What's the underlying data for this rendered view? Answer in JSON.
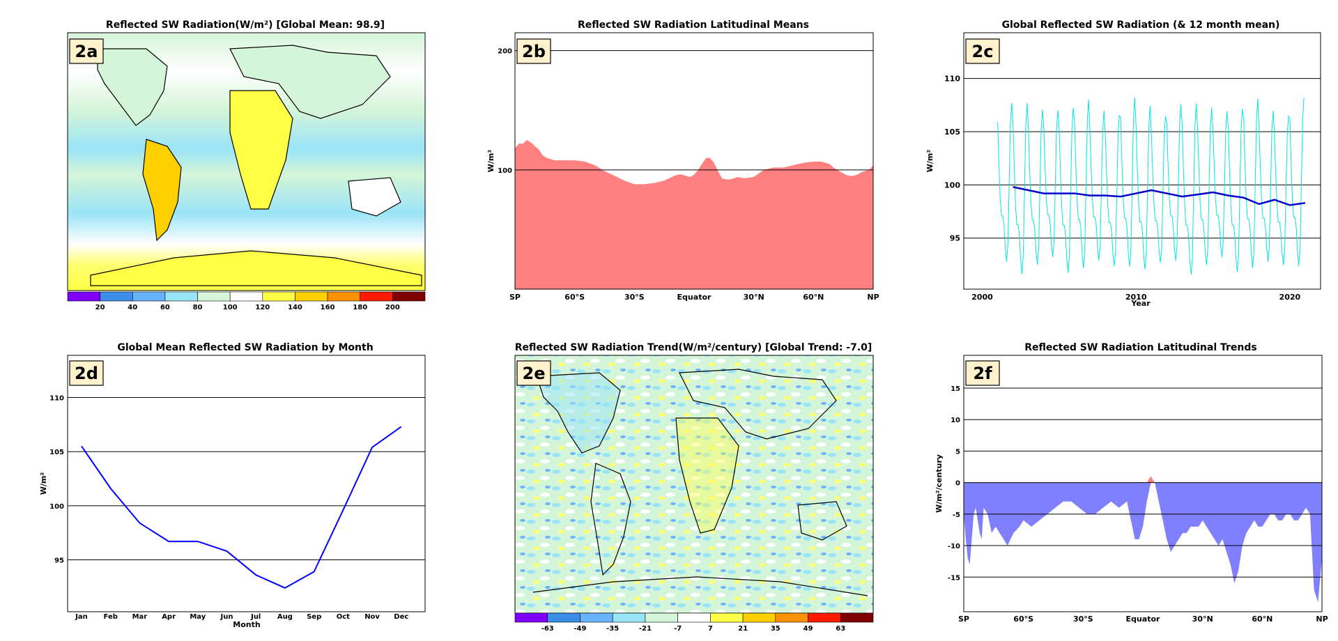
{
  "chart_data": [
    {
      "id": "2a",
      "type": "heatmap",
      "badge": "2a",
      "title": "Reflected SW Radiation(W/m²) [Global Mean: 98.9]",
      "colorbar": {
        "ticks": [
          "20",
          "40",
          "60",
          "80",
          "100",
          "120",
          "140",
          "160",
          "180",
          "200"
        ],
        "colors": [
          "#7f00ff",
          "#3a8ee8",
          "#66b4ff",
          "#9ae4f7",
          "#d5f5d8",
          "#ffffff",
          "#ffff46",
          "#ffd000",
          "#ff9100",
          "#ff1a00",
          "#800000"
        ]
      }
    },
    {
      "id": "2b",
      "type": "area",
      "badge": "2b",
      "title": "Reflected SW Radiation Latitudinal Means",
      "ylabel": "W/m²",
      "ylim": [
        0,
        215
      ],
      "yticks": [
        100,
        200
      ],
      "xlim": [
        -90,
        90
      ],
      "xticks": [
        {
          "v": -90,
          "label": "SP"
        },
        {
          "v": -60,
          "label": "60°S"
        },
        {
          "v": -30,
          "label": "30°S"
        },
        {
          "v": 0,
          "label": "Equator"
        },
        {
          "v": 30,
          "label": "30°N"
        },
        {
          "v": 60,
          "label": "60°N"
        },
        {
          "v": 90,
          "label": "NP"
        }
      ],
      "fill": "#ff8080",
      "x": [
        -90,
        -88,
        -86,
        -84,
        -82,
        -80,
        -78,
        -76,
        -74,
        -72,
        -70,
        -68,
        -66,
        -64,
        -62,
        -60,
        -55,
        -50,
        -45,
        -40,
        -35,
        -30,
        -25,
        -20,
        -15,
        -10,
        -8,
        -6,
        -4,
        -2,
        0,
        2,
        4,
        6,
        8,
        10,
        12,
        14,
        16,
        18,
        20,
        22,
        25,
        30,
        35,
        40,
        45,
        50,
        55,
        60,
        62,
        64,
        66,
        68,
        70,
        72,
        74,
        76,
        78,
        80,
        82,
        84,
        86,
        88,
        90
      ],
      "y": [
        118,
        122,
        122,
        125,
        123,
        120,
        117,
        112,
        110,
        109,
        108,
        108,
        108,
        108,
        108,
        108,
        107,
        104,
        99,
        95,
        91,
        88,
        88,
        89,
        91,
        95,
        96,
        96,
        95,
        94,
        96,
        100,
        105,
        110,
        110,
        106,
        99,
        93,
        92,
        92,
        93,
        94,
        93,
        94,
        100,
        102,
        102,
        104,
        106,
        107,
        107,
        107,
        106,
        105,
        102,
        100,
        98,
        96,
        95,
        95,
        96,
        98,
        99,
        100,
        104
      ]
    },
    {
      "id": "2c",
      "type": "line",
      "badge": "2c",
      "title": "Global Reflected SW Radiation (& 12 month mean)",
      "ylabel": "W/m²",
      "xlabel": "Year",
      "xlim": [
        1998.8,
        2022.0
      ],
      "ylim": [
        90.2,
        114.3
      ],
      "xticks": [
        2000,
        2010,
        2020
      ],
      "yticks": [
        95,
        100,
        105,
        110
      ],
      "monthly_start": 2001.0,
      "monthly_climatology": [
        105.5,
        101.6,
        98.4,
        96.7,
        96.7,
        95.8,
        93.6,
        92.4,
        93.9,
        99.6,
        105.4,
        107.3
      ],
      "mean_series": {
        "name": "12 month mean",
        "color": "#0000cc",
        "x": [
          2002.0,
          2003.0,
          2004.0,
          2005.0,
          2006.0,
          2007.0,
          2008.0,
          2009.0,
          2010.0,
          2011.0,
          2012.0,
          2013.0,
          2014.0,
          2015.0,
          2016.0,
          2017.0,
          2018.0,
          2019.0,
          2020.0,
          2021.0
        ],
        "y": [
          99.8,
          99.5,
          99.2,
          99.2,
          99.2,
          99.0,
          99.0,
          98.9,
          99.2,
          99.5,
          99.2,
          98.9,
          99.1,
          99.3,
          99.0,
          98.8,
          98.2,
          98.6,
          98.1,
          98.3
        ]
      },
      "monthly_series": {
        "name": "monthly",
        "color": "#00e5e5"
      }
    },
    {
      "id": "2d",
      "type": "line",
      "badge": "2d",
      "title": "Global Mean Reflected SW Radiation by Month",
      "ylabel": "W/m²",
      "xlabel": "Month",
      "ylim": [
        90.2,
        113.9
      ],
      "yticks": [
        95,
        100,
        105,
        110
      ],
      "categories": [
        "Jan",
        "Feb",
        "Mar",
        "Apr",
        "May",
        "Jun",
        "Jul",
        "Aug",
        "Sep",
        "Oct",
        "Nov",
        "Dec"
      ],
      "values": [
        105.5,
        101.6,
        98.4,
        96.7,
        96.7,
        95.8,
        93.6,
        92.4,
        93.9,
        99.6,
        105.4,
        107.3
      ],
      "color": "#0000ff"
    },
    {
      "id": "2e",
      "type": "heatmap",
      "badge": "2e",
      "title": "Reflected SW Radiation Trend(W/m²/century)  [Global Trend: -7.0]",
      "colorbar": {
        "ticks": [
          "-63",
          "-49",
          "-35",
          "-21",
          "-7",
          "7",
          "21",
          "35",
          "49",
          "63"
        ],
        "colors": [
          "#7f00ff",
          "#3a8ee8",
          "#66b4ff",
          "#9ae4f7",
          "#d5f5d8",
          "#ffffff",
          "#ffff46",
          "#ffd000",
          "#ff9100",
          "#ff1a00",
          "#800000"
        ]
      }
    },
    {
      "id": "2f",
      "type": "area",
      "badge": "2f",
      "title": "Reflected SW Radiation Latitudinal Trends",
      "ylabel": "W/m²/century",
      "xlim": [
        -90,
        90
      ],
      "ylim": [
        -20.5,
        20.2
      ],
      "yticks": [
        -15,
        -10,
        -5,
        0,
        5,
        10,
        15
      ],
      "xticks": [
        {
          "v": -90,
          "label": "SP"
        },
        {
          "v": -60,
          "label": "60°S"
        },
        {
          "v": -30,
          "label": "30°S"
        },
        {
          "v": 0,
          "label": "Equator"
        },
        {
          "v": 30,
          "label": "30°N"
        },
        {
          "v": 60,
          "label": "60°N"
        },
        {
          "v": 90,
          "label": "NP"
        }
      ],
      "pos_color": "#ff8080",
      "neg_color": "#8080ff",
      "x": [
        -90,
        -89,
        -88,
        -87,
        -86,
        -85,
        -84,
        -83,
        -82,
        -81,
        -80,
        -78,
        -76,
        -74,
        -72,
        -70,
        -68,
        -65,
        -62,
        -60,
        -56,
        -52,
        -48,
        -44,
        -40,
        -36,
        -32,
        -28,
        -24,
        -20,
        -16,
        -12,
        -8,
        -6,
        -4,
        -2,
        0,
        2,
        4,
        6,
        8,
        10,
        12,
        14,
        16,
        18,
        20,
        22,
        24,
        26,
        28,
        30,
        32,
        34,
        36,
        38,
        40,
        42,
        44,
        46,
        48,
        50,
        52,
        54,
        56,
        58,
        60,
        62,
        64,
        66,
        68,
        70,
        72,
        74,
        76,
        78,
        80,
        82,
        84,
        86,
        88,
        90
      ],
      "y": [
        -5,
        -9,
        -12,
        -13,
        -9,
        -5,
        -4,
        -6,
        -8,
        -9,
        -4,
        -5,
        -8,
        -7,
        -8,
        -9,
        -10,
        -8,
        -7,
        -6,
        -7,
        -6,
        -5,
        -4,
        -3,
        -3,
        -4,
        -5,
        -5,
        -4,
        -3,
        -4,
        -3,
        -6,
        -9,
        -9,
        -7,
        -3,
        1,
        0,
        -3,
        -6,
        -9,
        -11,
        -10,
        -9,
        -8,
        -8,
        -7,
        -7,
        -7,
        -6,
        -7,
        -8,
        -9,
        -10,
        -9,
        -11,
        -13,
        -16,
        -14,
        -10,
        -8,
        -7,
        -6,
        -7,
        -7,
        -6,
        -5,
        -5,
        -6,
        -6,
        -5,
        -5,
        -6,
        -6,
        -5,
        -4,
        -5,
        -17,
        -19,
        -12
      ]
    }
  ]
}
